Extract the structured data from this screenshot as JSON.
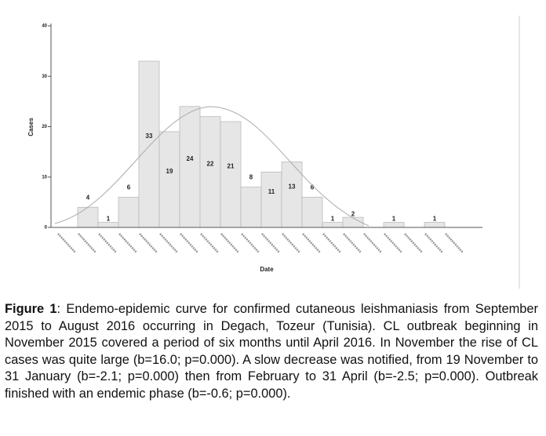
{
  "chart_data": {
    "type": "bar",
    "x_label": "Date",
    "y_label": "Cases",
    "categories": [
      null,
      null,
      null,
      null,
      null,
      null,
      null,
      null,
      null,
      null,
      null,
      null,
      null,
      null,
      null,
      null,
      null,
      null,
      null,
      null
    ],
    "values": [
      0,
      4,
      1,
      6,
      33,
      19,
      24,
      22,
      21,
      8,
      11,
      13,
      6,
      1,
      2,
      0,
      1,
      0,
      1,
      0
    ],
    "color": "#e6e6e6",
    "ylim": [
      0,
      40
    ],
    "yticks": [
      0,
      10,
      20,
      30,
      40
    ],
    "grid": false
  },
  "caption": {
    "label": "Figure 1",
    "text": ": Endemo-epidemic curve for confirmed cutaneous leishmaniasis from September 2015 to August 2016 occurring in Degach, Tozeur (Tunisia). CL outbreak beginning in November 2015 covered a period of six months until April 2016. In November the rise of CL cases was quite large (b=16.0; p=0.000). A slow decrease was notified, from 19 November to 31 January (b=-2.1; p=0.000) then from February to 31 April (b=-2.5; p=0.000). Outbreak finished with an endemic phase (b=-0.6; p=0.000)."
  }
}
